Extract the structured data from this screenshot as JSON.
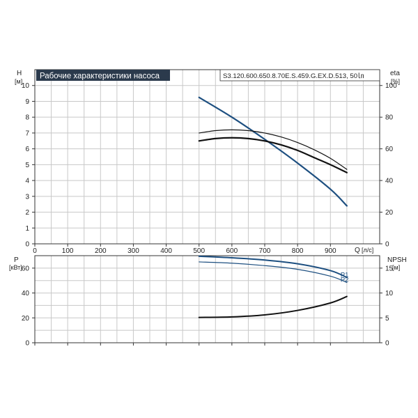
{
  "header": {
    "title": "Рабочие характеристики насоса",
    "model": "S3.120.600.650.8.70E.S.459.G.EX.D.513, 50㏑"
  },
  "colors": {
    "title_bg": "#2b3a4c",
    "blue": "#1d4f80",
    "black": "#111111",
    "grid": "#c8c8c8"
  },
  "chart_data": [
    {
      "type": "line",
      "panel": "top",
      "left_axis": {
        "label": "H",
        "unit": "[м]",
        "range": [
          0,
          11
        ],
        "ticks": [
          0,
          1,
          2,
          3,
          4,
          5,
          6,
          7,
          8,
          9,
          10
        ]
      },
      "right_axis": {
        "label": "eta",
        "unit": "[%]",
        "range": [
          0,
          110
        ],
        "ticks": [
          0,
          20,
          40,
          60,
          80,
          100
        ]
      },
      "x_axis": {
        "label": "Q",
        "unit": "[л/с]",
        "range": [
          0,
          1050
        ],
        "ticks": [
          0,
          100,
          200,
          300,
          400,
          500,
          600,
          700,
          800,
          900
        ]
      },
      "grid": true,
      "series": [
        {
          "key": "head",
          "axis": "left",
          "color": "blue",
          "width": 2.2,
          "x": [
            500,
            600,
            700,
            800,
            900,
            950
          ],
          "y": [
            9.25,
            8.0,
            6.6,
            5.1,
            3.45,
            2.4
          ]
        },
        {
          "key": "eta_upper",
          "axis": "right",
          "color": "black",
          "width": 1.2,
          "x": [
            500,
            550,
            600,
            650,
            700,
            750,
            800,
            850,
            900,
            950
          ],
          "y": [
            70,
            71.5,
            72,
            71.5,
            70,
            67.5,
            64,
            59.5,
            54,
            47
          ]
        },
        {
          "key": "eta_lower",
          "axis": "right",
          "color": "black",
          "width": 2.2,
          "x": [
            500,
            550,
            600,
            650,
            700,
            750,
            800,
            850,
            900,
            950
          ],
          "y": [
            65,
            66.5,
            67,
            66.5,
            65,
            62.5,
            59,
            54.5,
            50,
            45
          ]
        }
      ]
    },
    {
      "type": "line",
      "panel": "bottom",
      "left_axis": {
        "label": "P",
        "unit": "[кВт]",
        "range": [
          0,
          70
        ],
        "ticks": [
          0,
          20,
          40,
          60
        ]
      },
      "right_axis": {
        "label": "NPSH",
        "unit": "[м]",
        "range": [
          0,
          17.5
        ],
        "ticks": [
          0,
          5,
          10,
          15
        ]
      },
      "x_axis": {
        "range": [
          0,
          1050
        ],
        "ticks": [
          0,
          100,
          200,
          300,
          400,
          500,
          600,
          700,
          800,
          900
        ]
      },
      "grid": true,
      "series": [
        {
          "key": "p1",
          "name": "P1",
          "axis": "left",
          "color": "blue",
          "width": 2.0,
          "x": [
            500,
            600,
            700,
            800,
            900,
            950
          ],
          "y": [
            69.5,
            68.3,
            66.5,
            63.5,
            58,
            52.5
          ]
        },
        {
          "key": "p2",
          "name": "P2",
          "axis": "left",
          "color": "blue",
          "width": 1.2,
          "x": [
            500,
            600,
            700,
            800,
            900,
            950
          ],
          "y": [
            65,
            64,
            62,
            59,
            53.5,
            48.5
          ]
        },
        {
          "key": "npsh",
          "axis": "right",
          "color": "black",
          "width": 2.0,
          "x": [
            500,
            600,
            700,
            800,
            900,
            950
          ],
          "y": [
            5.1,
            5.2,
            5.6,
            6.5,
            8.0,
            9.3
          ]
        }
      ]
    }
  ]
}
